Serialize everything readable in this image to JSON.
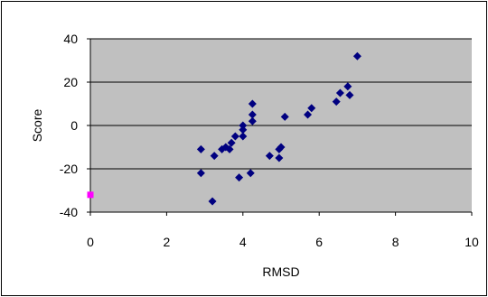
{
  "chart_data": {
    "type": "scatter",
    "xlabel": "RMSD",
    "ylabel": "Score",
    "xlim": [
      0,
      10
    ],
    "ylim": [
      -40,
      40
    ],
    "x_ticks": [
      0,
      2,
      4,
      6,
      8,
      10
    ],
    "y_ticks": [
      -40,
      -20,
      0,
      20,
      40
    ],
    "x_tick_labels": [
      "0",
      "2",
      "4",
      "6",
      "8",
      "10"
    ],
    "y_tick_labels": [
      "-40",
      "-20",
      "0",
      "20",
      "40"
    ],
    "grid": "horizontal",
    "plot_background": "#C0C0C0",
    "series": [
      {
        "color": "#000080",
        "marker": "diamond",
        "points": [
          {
            "x": 2.9,
            "y": -11
          },
          {
            "x": 2.9,
            "y": -22
          },
          {
            "x": 3.2,
            "y": -35
          },
          {
            "x": 3.25,
            "y": -14
          },
          {
            "x": 3.45,
            "y": -11
          },
          {
            "x": 3.55,
            "y": -10
          },
          {
            "x": 3.65,
            "y": -11
          },
          {
            "x": 3.7,
            "y": -8
          },
          {
            "x": 3.8,
            "y": -5
          },
          {
            "x": 3.9,
            "y": -24
          },
          {
            "x": 4.0,
            "y": 0
          },
          {
            "x": 4.0,
            "y": -2
          },
          {
            "x": 4.0,
            "y": -5
          },
          {
            "x": 4.2,
            "y": -22
          },
          {
            "x": 4.25,
            "y": 10
          },
          {
            "x": 4.25,
            "y": 5
          },
          {
            "x": 4.25,
            "y": 2
          },
          {
            "x": 4.7,
            "y": -14
          },
          {
            "x": 4.95,
            "y": -15
          },
          {
            "x": 4.95,
            "y": -11
          },
          {
            "x": 5.0,
            "y": -10
          },
          {
            "x": 5.1,
            "y": 4
          },
          {
            "x": 5.7,
            "y": 5
          },
          {
            "x": 5.8,
            "y": 8
          },
          {
            "x": 6.45,
            "y": 11
          },
          {
            "x": 6.55,
            "y": 15
          },
          {
            "x": 6.75,
            "y": 18
          },
          {
            "x": 6.8,
            "y": 14
          },
          {
            "x": 7.0,
            "y": 32
          }
        ]
      },
      {
        "color": "#FF00FF",
        "marker": "square",
        "points": [
          {
            "x": 0,
            "y": -32
          }
        ]
      }
    ]
  }
}
